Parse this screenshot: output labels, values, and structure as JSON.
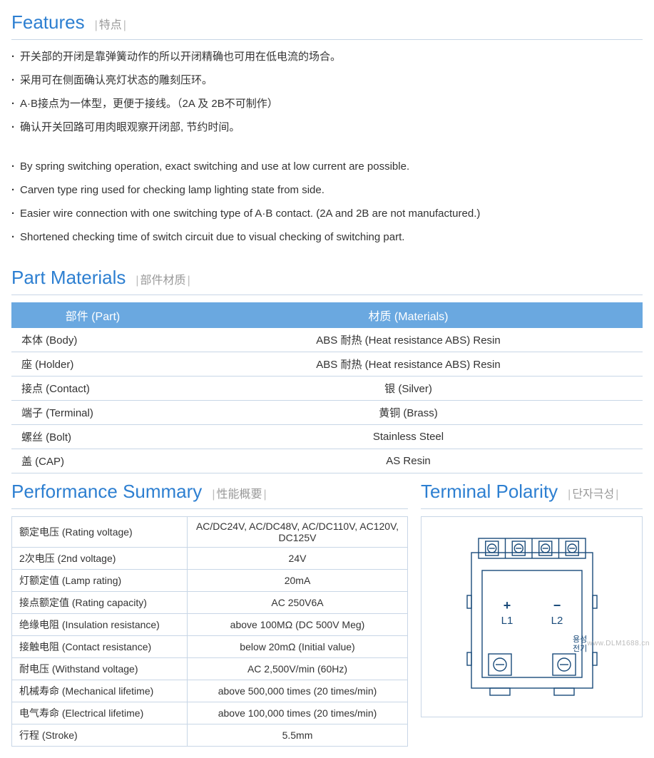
{
  "features_section": {
    "title_en": "Features",
    "title_sub": "特点",
    "items_cn": [
      "开关部的开闭是靠弹簧动作的所以开闭精确也可用在低电流的场合。",
      "采用可在侧面确认亮灯状态的雕刻压环。",
      "A·B接点为一体型，更便于接线。（2A 及 2B不可制作）",
      "确认开关回路可用肉眼观察开闭部, 节约时间。"
    ],
    "items_en": [
      "By spring switching operation, exact switching and use at low current are possible.",
      "Carven type ring used for checking lamp lighting state from side.",
      "Easier wire connection with one switching type of A·B contact. (2A and 2B are not manufactured.)",
      "Shortened checking time of switch circuit due to visual checking of switching part."
    ]
  },
  "parts_section": {
    "title_en": "Part Materials",
    "title_sub": "部件材质",
    "header_part": "部件 (Part)",
    "header_material": "材质 (Materials)",
    "rows": [
      {
        "part": "本体 (Body)",
        "material": "ABS 耐热 (Heat resistance ABS) Resin"
      },
      {
        "part": "座   (Holder)",
        "material": "ABS 耐热 (Heat resistance ABS) Resin"
      },
      {
        "part": "接点 (Contact)",
        "material": "银 (Silver)"
      },
      {
        "part": "端子 (Terminal)",
        "material": "黄铜 (Brass)"
      },
      {
        "part": "螺丝 (Bolt)",
        "material": "Stainless Steel"
      },
      {
        "part": "盖 (CAP)",
        "material": "AS Resin"
      }
    ]
  },
  "perf_section": {
    "title_en": "Performance Summary",
    "title_sub": "性能概要",
    "rows": [
      {
        "label": "额定电压 (Rating voltage)",
        "value": "AC/DC24V, AC/DC48V, AC/DC110V, AC120V, DC125V"
      },
      {
        "label": "2次电压 (2nd voltage)",
        "value": "24V"
      },
      {
        "label": "灯额定值 (Lamp rating)",
        "value": "20mA"
      },
      {
        "label": "接点额定值 (Rating capacity)",
        "value": "AC 250V6A"
      },
      {
        "label": "绝缘电阻 (Insulation resistance)",
        "value": "above 100MΩ (DC 500V Meg)"
      },
      {
        "label": "接触电阻 (Contact resistance)",
        "value": "below 20mΩ (Initial value)"
      },
      {
        "label": "耐电压 (Withstand voltage)",
        "value": "AC 2,500V/min (60Hz)"
      },
      {
        "label": "机械寿命 (Mechanical lifetime)",
        "value": "above 500,000 times (20 times/min)"
      },
      {
        "label": "电气寿命 (Electrical lifetime)",
        "value": "above 100,000 times (20 times/min)"
      },
      {
        "label": "行程 (Stroke)",
        "value": "5.5mm"
      }
    ]
  },
  "terminal_section": {
    "title_en": "Terminal Polarity",
    "title_sub": "단자극성",
    "diagram": {
      "top_terminal_count": 4,
      "bottom_terminal_count": 2,
      "l1_symbol": "+",
      "l1_label": "L1",
      "l2_symbol": "−",
      "l2_label": "L2",
      "side_text": "용성\n전기",
      "stroke_color": "#1a4b7a",
      "stroke_width": 1.4,
      "text_color": "#1a4b7a",
      "symbol_fontsize": 18,
      "label_fontsize": 15,
      "side_fontsize": 11
    }
  },
  "watermark": "www.DLM1688.cn",
  "colors": {
    "title_blue": "#2d7fd1",
    "table_header_bg": "#6aa8e0",
    "border": "#c8d6e6",
    "sub_gray": "#999"
  }
}
